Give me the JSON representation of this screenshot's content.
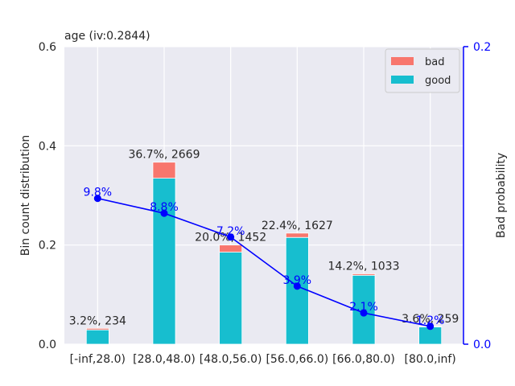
{
  "chart_data": {
    "type": "bar",
    "title": "age  (iv:0.2844)",
    "ylabel": "Bin count distribution",
    "y2label": "Bad probability",
    "ylim": [
      0,
      0.6
    ],
    "y2lim": [
      0,
      0.2
    ],
    "yticks": [
      "0.0",
      "0.2",
      "0.4",
      "0.6"
    ],
    "y2ticks": [
      "0.0",
      "0.2"
    ],
    "categories": [
      "[-inf,28.0)",
      "[28.0,48.0)",
      "[48.0,56.0)",
      "[56.0,66.0)",
      "[66.0,80.0)",
      "[80.0,inf)"
    ],
    "series": [
      {
        "name": "good",
        "color": "#17becf",
        "values": [
          0.0289,
          0.3347,
          0.1856,
          0.2153,
          0.139,
          0.0347
        ]
      },
      {
        "name": "bad",
        "color": "#f8766d",
        "values": [
          0.0031,
          0.0323,
          0.0144,
          0.0087,
          0.003,
          0.0013
        ]
      }
    ],
    "bar_labels": [
      "3.2%, 234",
      "36.7%, 2669",
      "20.0%, 1452",
      "22.4%, 1627",
      "14.2%, 1033",
      "3.6%, 259"
    ],
    "bad_probability": {
      "color": "#0000ff",
      "values": [
        0.098,
        0.088,
        0.072,
        0.039,
        0.021,
        0.012
      ],
      "labels": [
        "9.8%",
        "8.8%",
        "7.2%",
        "3.9%",
        "2.1%",
        "1.2%"
      ]
    },
    "legend": {
      "placement": "top-right",
      "entries": [
        "bad",
        "good"
      ]
    },
    "grid": true,
    "background": "#eaeaf2",
    "right_axis_color": "#0000ff"
  }
}
